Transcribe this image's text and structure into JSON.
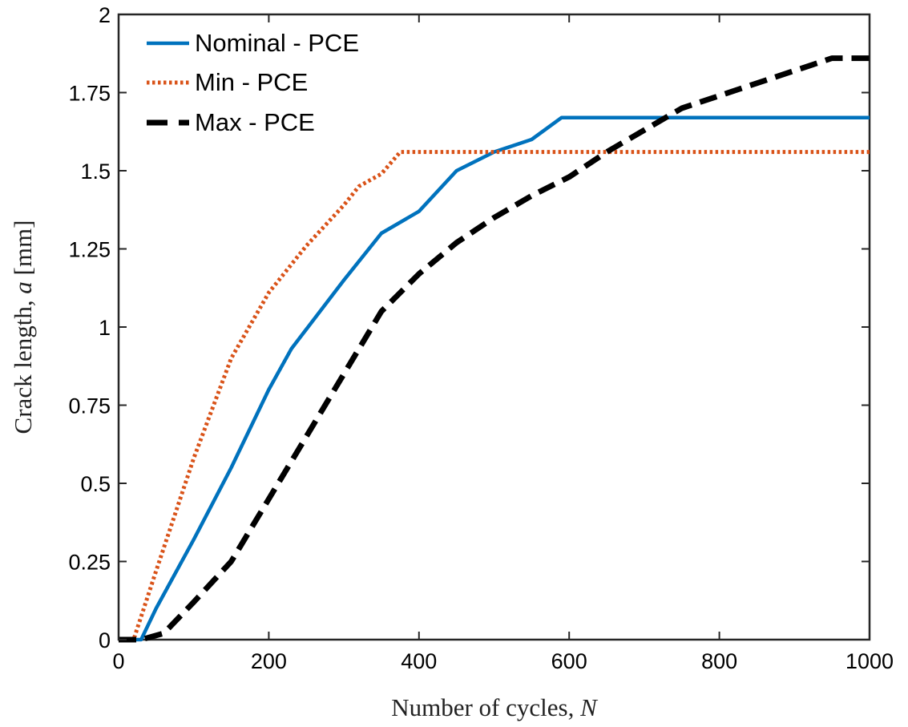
{
  "chart_data": {
    "type": "line",
    "xlabel": "Number of cycles,",
    "xlabel_symbol": "N",
    "ylabel": "Crack length,",
    "ylabel_symbol": "a",
    "ylabel_unit": "[mm]",
    "xlim": [
      0,
      1000
    ],
    "ylim": [
      0,
      2
    ],
    "xticks": [
      0,
      200,
      400,
      600,
      800,
      1000
    ],
    "xtick_labels": [
      "0",
      "200",
      "400",
      "600",
      "800",
      "1000"
    ],
    "yticks": [
      0,
      0.25,
      0.5,
      0.75,
      1,
      1.25,
      1.5,
      1.75,
      2
    ],
    "ytick_labels": [
      "0",
      "0.25",
      "0.5",
      "0.75",
      "1",
      "1.25",
      "1.5",
      "1.75",
      "2"
    ],
    "grid": false,
    "legend_position": "top-left",
    "series": [
      {
        "name": "Nominal - PCE",
        "color": "#0072BD",
        "style": "solid",
        "x": [
          0,
          30,
          50,
          100,
          150,
          200,
          230,
          300,
          350,
          400,
          450,
          500,
          550,
          590,
          1000
        ],
        "y": [
          0,
          0,
          0.1,
          0.32,
          0.55,
          0.8,
          0.93,
          1.15,
          1.3,
          1.37,
          1.5,
          1.56,
          1.6,
          1.67,
          1.67
        ]
      },
      {
        "name": "Min - PCE",
        "color": "#D95319",
        "style": "dotted",
        "x": [
          0,
          20,
          50,
          100,
          150,
          200,
          250,
          300,
          320,
          350,
          375,
          1000
        ],
        "y": [
          0,
          0,
          0.22,
          0.58,
          0.9,
          1.11,
          1.26,
          1.39,
          1.45,
          1.49,
          1.56,
          1.56
        ]
      },
      {
        "name": "Max - PCE",
        "color": "#000000",
        "style": "dashed",
        "x": [
          0,
          30,
          60,
          100,
          150,
          200,
          250,
          300,
          350,
          400,
          450,
          500,
          550,
          600,
          650,
          700,
          750,
          800,
          850,
          900,
          950,
          1000
        ],
        "y": [
          0,
          0,
          0.02,
          0.12,
          0.25,
          0.45,
          0.65,
          0.85,
          1.05,
          1.17,
          1.27,
          1.35,
          1.42,
          1.48,
          1.56,
          1.63,
          1.7,
          1.74,
          1.78,
          1.82,
          1.86,
          1.86
        ]
      }
    ]
  }
}
